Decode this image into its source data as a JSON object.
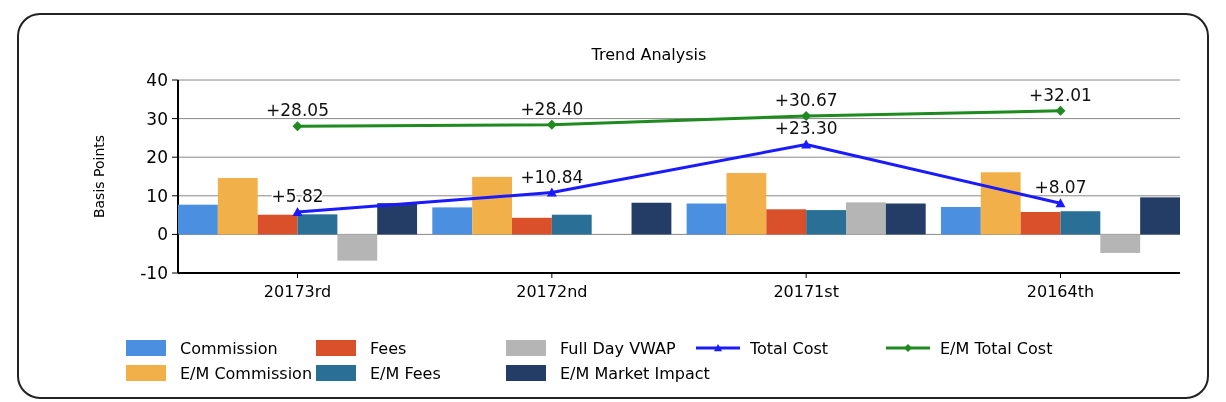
{
  "chart_data": {
    "type": "bar",
    "title": "Trend Analysis",
    "ylabel": "Basis Points",
    "categories": [
      "20173rd",
      "20172nd",
      "20171st",
      "20164th"
    ],
    "ylim": [
      -10,
      40
    ],
    "yticks": [
      -10,
      0,
      10,
      20,
      30,
      40
    ],
    "grid": "y",
    "legend": "bottom",
    "series": [
      {
        "name": "Commission",
        "color": "#4a8fe0",
        "values": [
          7.7,
          7.0,
          8.0,
          7.1
        ]
      },
      {
        "name": "E/M Commission",
        "color": "#f2b04a",
        "values": [
          14.6,
          14.9,
          15.9,
          16.1
        ]
      },
      {
        "name": "Fees",
        "color": "#d9502a",
        "values": [
          5.1,
          4.3,
          6.5,
          5.8
        ]
      },
      {
        "name": "E/M Fees",
        "color": "#2a6f96",
        "values": [
          5.2,
          5.1,
          6.3,
          6.0
        ]
      },
      {
        "name": "Full Day VWAP",
        "color": "#b5b5b5",
        "values": [
          -6.8,
          null,
          8.3,
          -4.8
        ]
      },
      {
        "name": "E/M Market Impact",
        "color": "#243d66",
        "values": [
          8.1,
          8.2,
          8.0,
          9.6
        ]
      },
      {
        "name": "Total Cost",
        "type": "line",
        "color": "#1a1aff",
        "marker": "triangle",
        "values": [
          5.82,
          10.84,
          23.3,
          8.07
        ],
        "value_labels": [
          "+5.82",
          "+10.84",
          "+23.30",
          "+8.07"
        ]
      },
      {
        "name": "E/M Total Cost",
        "type": "line",
        "color": "#1f8a1f",
        "marker": "diamond",
        "values": [
          28.05,
          28.4,
          30.67,
          32.01
        ],
        "value_labels": [
          "+28.05",
          "+28.40",
          "+30.67",
          "+32.01"
        ]
      }
    ]
  }
}
